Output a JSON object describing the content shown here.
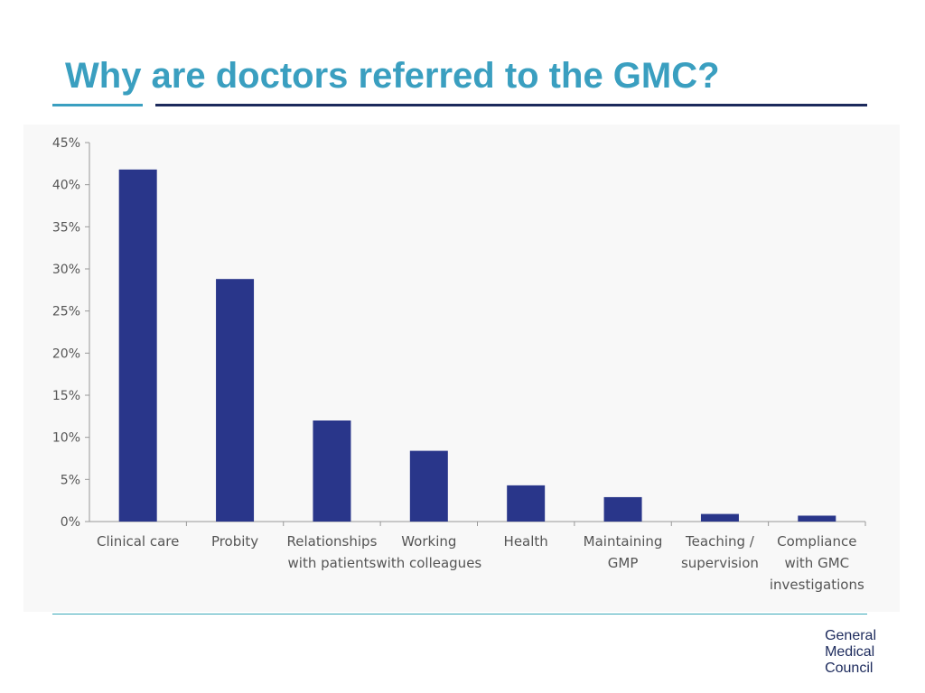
{
  "slide": {
    "title": "Why are doctors referred to the GMC?"
  },
  "logo": {
    "lines": [
      "General",
      "Medical",
      "Council"
    ]
  },
  "colors": {
    "title": "#3a9fc0",
    "rule_main": "#1c2a5c",
    "bar": "#29368a",
    "axis": "#999999",
    "tick_text": "#555555"
  },
  "chart_data": {
    "type": "bar",
    "categories": [
      [
        "Clinical care"
      ],
      [
        "Probity"
      ],
      [
        "Relationships",
        "with patients"
      ],
      [
        "Working",
        "with colleagues"
      ],
      [
        "Health"
      ],
      [
        "Maintaining",
        "GMP"
      ],
      [
        "Teaching /",
        "supervision"
      ],
      [
        "Compliance",
        "with GMC",
        "investigations"
      ]
    ],
    "values": [
      41.8,
      28.8,
      12.0,
      8.4,
      4.3,
      2.9,
      0.9,
      0.7
    ],
    "yticks": [
      "0%",
      "5%",
      "10%",
      "15%",
      "20%",
      "25%",
      "30%",
      "35%",
      "40%",
      "45%"
    ],
    "ylim": [
      0,
      45
    ],
    "grid": false,
    "legend": "none"
  }
}
